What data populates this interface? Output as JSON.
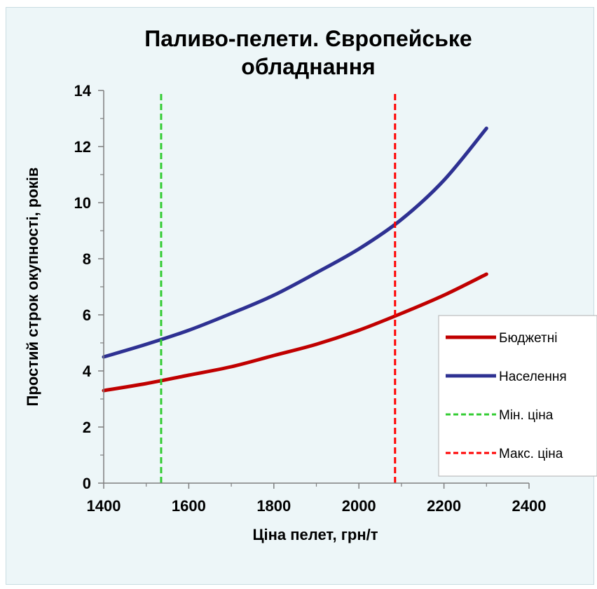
{
  "chart_data": {
    "type": "line",
    "title_line1": "Паливо-пелети. Європейське",
    "title_line2": "обладнання",
    "xlabel": "Ціна пелет, грн/т",
    "ylabel": "Простий строк окупності, років",
    "xlim": [
      1400,
      2400
    ],
    "ylim": [
      0,
      14
    ],
    "x_ticks": [
      "1400",
      "1600",
      "1800",
      "2000",
      "2200",
      "2400"
    ],
    "y_ticks": [
      "0",
      "2",
      "4",
      "6",
      "8",
      "10",
      "12",
      "14"
    ],
    "grid": false,
    "legend_position": "right",
    "series": [
      {
        "name": "Бюджетні",
        "color": "#c00000",
        "style": "solid",
        "points": [
          [
            1400,
            3.3
          ],
          [
            1500,
            3.55
          ],
          [
            1600,
            3.85
          ],
          [
            1700,
            4.15
          ],
          [
            1800,
            4.55
          ],
          [
            1900,
            4.95
          ],
          [
            2000,
            5.45
          ],
          [
            2100,
            6.05
          ],
          [
            2200,
            6.7
          ],
          [
            2300,
            7.45
          ]
        ]
      },
      {
        "name": "Населення",
        "color": "#2e3192",
        "style": "solid",
        "points": [
          [
            1400,
            4.5
          ],
          [
            1500,
            4.95
          ],
          [
            1600,
            5.45
          ],
          [
            1700,
            6.05
          ],
          [
            1800,
            6.7
          ],
          [
            1900,
            7.5
          ],
          [
            2000,
            8.35
          ],
          [
            2100,
            9.4
          ],
          [
            2200,
            10.8
          ],
          [
            2300,
            12.65
          ]
        ]
      },
      {
        "name": "Мін. ціна",
        "color": "#33cc33",
        "style": "dashed",
        "points": [
          [
            1535,
            0
          ],
          [
            1535,
            14
          ]
        ]
      },
      {
        "name": "Макс. ціна",
        "color": "#ff0000",
        "style": "dashed",
        "points": [
          [
            2085,
            0
          ],
          [
            2085,
            14
          ]
        ]
      }
    ]
  }
}
